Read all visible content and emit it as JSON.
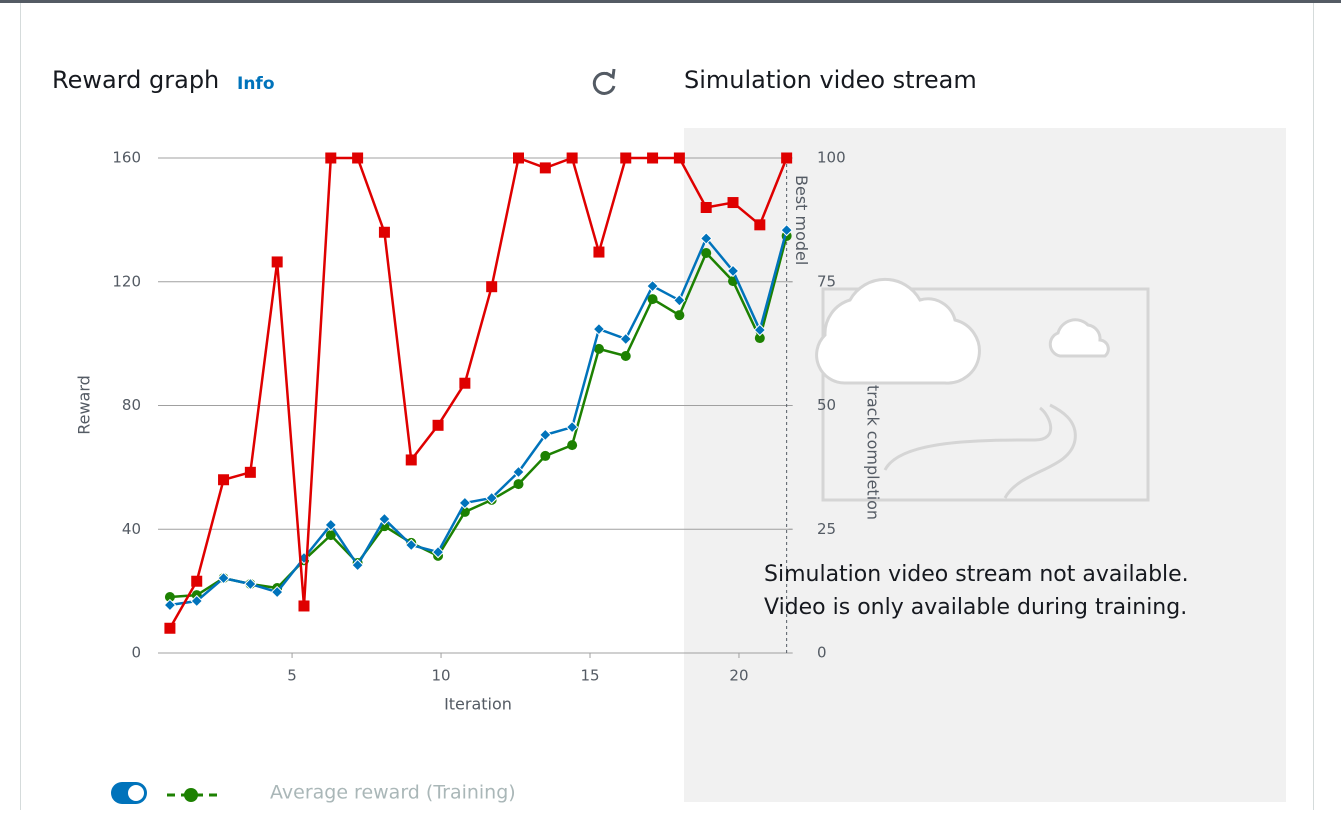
{
  "header": {
    "title": "Reward graph",
    "info": "Info"
  },
  "video": {
    "title": "Simulation video stream",
    "message": [
      "Simulation video stream not available.",
      "Video is only available during training."
    ]
  },
  "chart_data": {
    "type": "line",
    "x_label": "Iteration",
    "y_label": "Reward",
    "y2_label": "track completion",
    "x": [
      0.9,
      1.8,
      2.7,
      3.6,
      4.5,
      5.4,
      6.3,
      7.2,
      8.1,
      9.0,
      9.9,
      10.8,
      11.7,
      12.6,
      13.5,
      14.4,
      15.3,
      16.2,
      17.1,
      18.0,
      18.9,
      19.8,
      20.7,
      21.6
    ],
    "series": [
      {
        "name": "Average reward (Training)",
        "color": "#1d8102",
        "marker": "circle",
        "values": [
          18.1,
          18.7,
          24.2,
          22.3,
          21,
          30,
          38.1,
          29.1,
          41,
          35.6,
          31.4,
          45.6,
          49.5,
          54.6,
          63.7,
          67.2,
          98.3,
          96,
          114.4,
          109.2,
          129.3,
          120.2,
          101.8,
          134.8
        ]
      },
      {
        "color": "#0073bb",
        "marker": "diamond",
        "values": [
          15.5,
          16.8,
          24.2,
          22.3,
          19.7,
          30.7,
          41.4,
          28.4,
          43.3,
          34.9,
          32.6,
          48.5,
          50.1,
          58.5,
          70.5,
          73,
          104.7,
          101.5,
          118.6,
          114,
          134,
          123.5,
          104.4,
          136.7
        ]
      },
      {
        "color": "#df0000",
        "marker": "square",
        "axis": "y2",
        "values": [
          5,
          14.5,
          35,
          36.5,
          79,
          9.5,
          100,
          100,
          85,
          39,
          46,
          54.5,
          74,
          100,
          98,
          100,
          81,
          100,
          100,
          100,
          90,
          91,
          86.5,
          100
        ]
      }
    ],
    "xlim": [
      0.5,
      21.8
    ],
    "xticks": [
      5,
      10,
      15,
      20
    ],
    "ylim": [
      0,
      160
    ],
    "yticks": [
      0,
      40,
      80,
      120,
      160
    ],
    "y2lim": [
      0,
      100
    ],
    "y2ticks": [
      0,
      25,
      50,
      75,
      100
    ],
    "grid": true,
    "annotations": [
      {
        "x": 21.6,
        "label": "Best model"
      }
    ]
  }
}
